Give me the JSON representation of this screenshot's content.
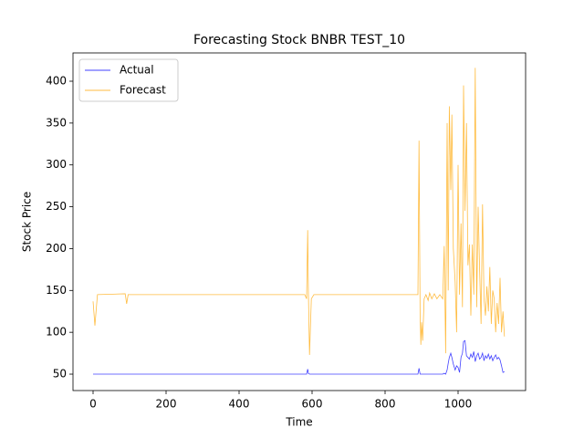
{
  "chart_data": {
    "type": "line",
    "title": "Forecasting Stock BNBR TEST_10",
    "x_label": "Time",
    "y_label": "Stock Price",
    "x": [
      0,
      5,
      12,
      88,
      92,
      96,
      580,
      585,
      588,
      590,
      593,
      598,
      605,
      890,
      893,
      896,
      898,
      900,
      903,
      907,
      912,
      918,
      922,
      928,
      935,
      942,
      950,
      958,
      962,
      966,
      970,
      973,
      976,
      980,
      983,
      987,
      992,
      996,
      1000,
      1004,
      1008,
      1012,
      1015,
      1019,
      1023,
      1027,
      1031,
      1035,
      1039,
      1043,
      1047,
      1051,
      1055,
      1059,
      1063,
      1067,
      1071,
      1075,
      1079,
      1083,
      1087,
      1091,
      1095,
      1099,
      1103,
      1107,
      1111,
      1115,
      1119,
      1123,
      1127
    ],
    "series": [
      {
        "name": "Actual",
        "color": "#0000ff",
        "values": [
          50,
          50,
          50,
          50,
          50,
          50,
          50,
          50,
          56,
          51,
          50,
          50,
          50,
          50,
          57,
          50,
          50,
          50,
          50,
          50,
          50,
          50,
          50,
          50,
          50,
          50,
          50,
          50,
          51,
          50,
          55,
          63,
          70,
          75,
          70,
          62,
          55,
          60,
          58,
          52,
          70,
          75,
          89,
          90,
          72,
          70,
          68,
          74,
          70,
          77,
          65,
          72,
          75,
          68,
          70,
          75,
          66,
          72,
          69,
          74,
          68,
          72,
          66,
          70,
          73,
          68,
          70,
          67,
          60,
          52,
          53
        ]
      },
      {
        "name": "Forecast",
        "color": "#ffa500",
        "values": [
          137,
          108,
          145,
          146,
          134,
          145,
          145,
          140,
          222,
          145,
          73,
          140,
          145,
          145,
          329,
          120,
          85,
          112,
          90,
          140,
          145,
          138,
          147,
          140,
          146,
          140,
          145,
          140,
          203,
          75,
          350,
          150,
          370,
          270,
          360,
          200,
          160,
          100,
          300,
          145,
          230,
          130,
          395,
          245,
          350,
          180,
          205,
          120,
          205,
          145,
          416,
          130,
          250,
          175,
          110,
          253,
          140,
          120,
          155,
          125,
          178,
          110,
          150,
          140,
          100,
          135,
          110,
          165,
          100,
          125,
          95
        ]
      }
    ],
    "xlim": [
      -55,
      1185
    ],
    "ylim": [
      30.4,
      433.8
    ],
    "xticks": [
      0,
      200,
      400,
      600,
      800,
      1000
    ],
    "yticks": [
      50,
      100,
      150,
      200,
      250,
      300,
      350,
      400
    ],
    "legend": "upper left"
  }
}
